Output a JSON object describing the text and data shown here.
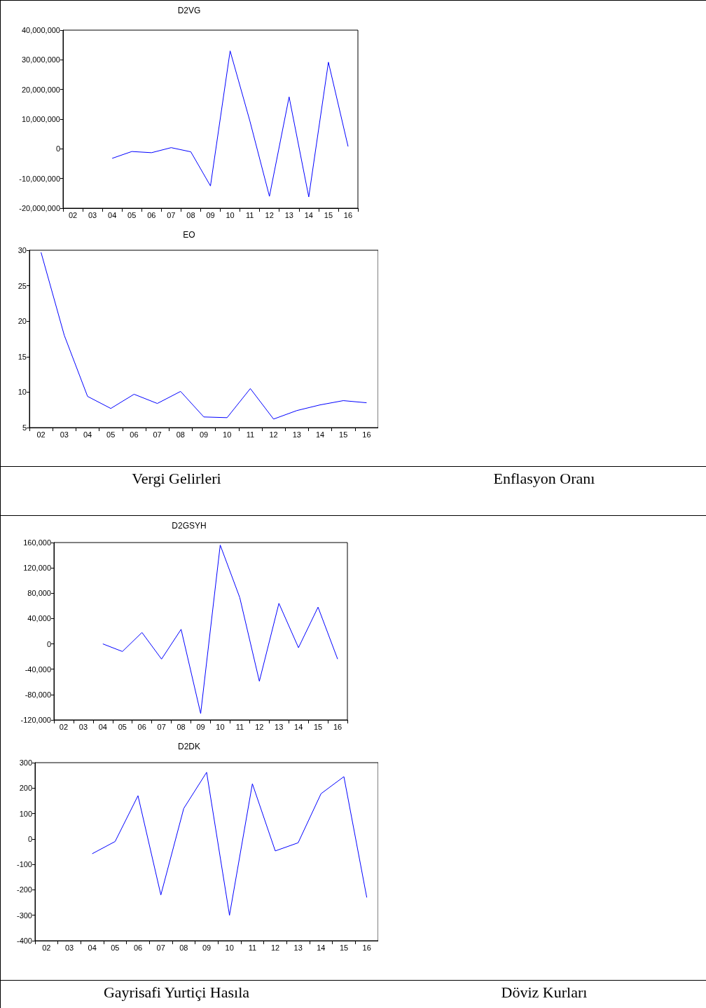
{
  "chart_data": [
    {
      "type": "line",
      "title": "D2VG",
      "categories": [
        "02",
        "03",
        "04",
        "05",
        "06",
        "07",
        "08",
        "09",
        "10",
        "11",
        "12",
        "13",
        "14",
        "15",
        "16"
      ],
      "values": [
        null,
        null,
        -3200000,
        -900000,
        -1300000,
        400000,
        -1000000,
        -12500000,
        33000000,
        9500000,
        -16000000,
        17500000,
        -16200000,
        29200000,
        800000
      ],
      "color": "#0000ff",
      "ylim": [
        -20000000,
        40000000
      ],
      "yticks": [
        {
          "value": -20000000,
          "label": "-20,000,000"
        },
        {
          "value": -10000000,
          "label": "-10,000,000"
        },
        {
          "value": 0,
          "label": "0"
        },
        {
          "value": 10000000,
          "label": "10,000,000"
        },
        {
          "value": 20000000,
          "label": "20,000,000"
        },
        {
          "value": 30000000,
          "label": "30,000,000"
        },
        {
          "value": 40000000,
          "label": "40,000,000"
        }
      ],
      "annotations": [
        "Vergi Gelirleri"
      ]
    },
    {
      "type": "line",
      "title": "EO",
      "categories": [
        "02",
        "03",
        "04",
        "05",
        "06",
        "07",
        "08",
        "09",
        "10",
        "11",
        "12",
        "13",
        "14",
        "15",
        "16"
      ],
      "values": [
        29.7,
        18,
        9.4,
        7.7,
        9.7,
        8.4,
        10.1,
        6.5,
        6.4,
        10.5,
        6.2,
        7.4,
        8.2,
        8.8,
        8.5
      ],
      "color": "#0000ff",
      "ylim": [
        5,
        30
      ],
      "yticks": [
        5,
        10,
        15,
        20,
        25,
        30
      ],
      "annotations": [
        "Enflasyon Oranı"
      ]
    },
    {
      "type": "line",
      "title": "D2GSYH",
      "categories": [
        "02",
        "03",
        "04",
        "05",
        "06",
        "07",
        "08",
        "09",
        "10",
        "11",
        "12",
        "13",
        "14",
        "15",
        "16"
      ],
      "values": [
        null,
        null,
        0,
        -12000,
        18000,
        -24000,
        23000,
        -110000,
        156000,
        73000,
        -59000,
        64000,
        -6000,
        58000,
        -24000
      ],
      "color": "#0000ff",
      "ylim": [
        -120000,
        160000
      ],
      "yticks": [
        {
          "value": -120000,
          "label": "-120,000"
        },
        {
          "value": -80000,
          "label": "-80,000"
        },
        {
          "value": -40000,
          "label": "-40,000"
        },
        {
          "value": 0,
          "label": "0"
        },
        {
          "value": 40000,
          "label": "40,000"
        },
        {
          "value": 80000,
          "label": "80,000"
        },
        {
          "value": 120000,
          "label": "120,000"
        },
        {
          "value": 160000,
          "label": "160,000"
        }
      ],
      "annotations": [
        "Gayrisafi Yurtiçi Hasıla"
      ]
    },
    {
      "type": "line",
      "title": "D2DK",
      "categories": [
        "02",
        "03",
        "04",
        "05",
        "06",
        "07",
        "08",
        "09",
        "10",
        "11",
        "12",
        "13",
        "14",
        "15",
        "16"
      ],
      "values": [
        null,
        null,
        -58,
        -10,
        170,
        -220,
        120,
        262,
        -300,
        217,
        -47,
        -15,
        178,
        245,
        -230
      ],
      "color": "#0000ff",
      "ylim": [
        -400,
        300
      ],
      "yticks": [
        -400,
        -300,
        -200,
        -100,
        0,
        100,
        200,
        300
      ],
      "annotations": [
        "Döviz Kurları"
      ]
    }
  ]
}
